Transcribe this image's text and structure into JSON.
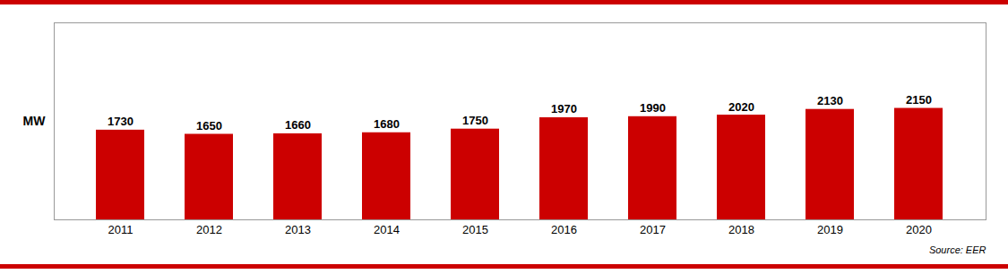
{
  "chart_data": {
    "type": "bar",
    "categories": [
      "2011",
      "2012",
      "2013",
      "2014",
      "2015",
      "2016",
      "2017",
      "2018",
      "2019",
      "2020"
    ],
    "values": [
      1730,
      1650,
      1660,
      1680,
      1750,
      1970,
      1990,
      2020,
      2130,
      2150
    ],
    "color": "#cc0000",
    "ylabel": "MW",
    "annotations": [
      "Source: EER"
    ],
    "ylim": [
      0,
      3800
    ],
    "yticks": [],
    "grid": false,
    "data_labels": true,
    "tick_labels": "x"
  }
}
